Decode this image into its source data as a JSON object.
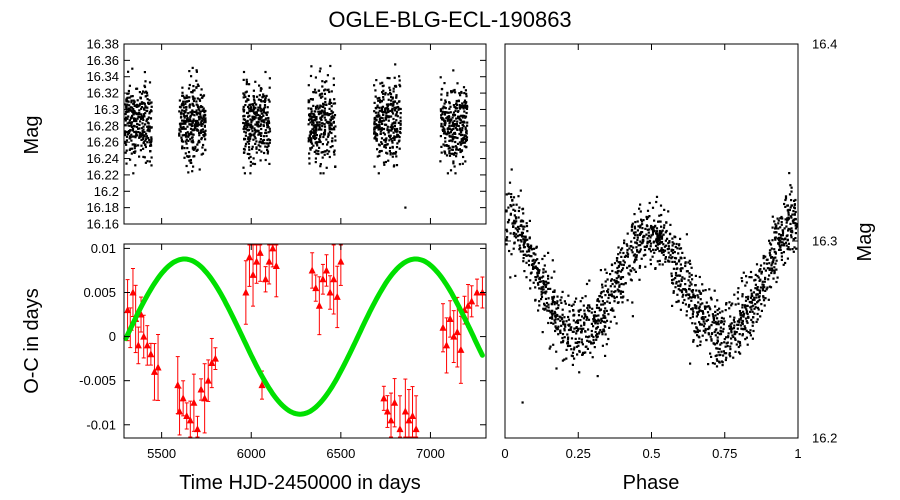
{
  "title": "OGLE-BLG-ECL-190863",
  "colors": {
    "data": "#000000",
    "oc_points": "#ff0000",
    "fit": "#00e000"
  },
  "chart_data": [
    {
      "id": "light_curve",
      "type": "scatter",
      "xlabel": "",
      "ylabel": "Mag",
      "xlim": [
        5290,
        7310
      ],
      "ylim": [
        16.38,
        16.16
      ],
      "yticks": [
        "16.16",
        "16.18",
        "16.2",
        "16.22",
        "16.24",
        "16.26",
        "16.28",
        "16.3",
        "16.32",
        "16.34",
        "16.36",
        "16.38"
      ],
      "season_centers": [
        5370,
        5670,
        6030,
        6395,
        6760,
        7130
      ],
      "season_halfwidth": 75,
      "mean_mag": 16.285,
      "scatter_mag": 0.024,
      "outlier": {
        "x": 6860,
        "y": 16.18
      }
    },
    {
      "id": "oc_diagram",
      "type": "scatter",
      "xlabel": "Time HJD-2450000 in days",
      "ylabel": "O-C in days",
      "xlim": [
        5290,
        7310
      ],
      "ylim": [
        -0.0115,
        0.0105
      ],
      "xticks": [
        "5500",
        "6000",
        "6500",
        "7000"
      ],
      "yticks": [
        "0.01",
        "0.005",
        "0",
        "-0.005",
        "-0.01"
      ],
      "fit": {
        "type": "sine",
        "amplitude": 0.0088,
        "offset": 0.0,
        "period_days": 1290,
        "phase_zero": 5950
      },
      "points": [
        {
          "x": 5310,
          "y": 0.003
        },
        {
          "x": 5325,
          "y": 0.001
        },
        {
          "x": 5340,
          "y": 0.005
        },
        {
          "x": 5355,
          "y": 0.002
        },
        {
          "x": 5370,
          "y": -0.001
        },
        {
          "x": 5385,
          "y": 0.0025
        },
        {
          "x": 5400,
          "y": 0.0
        },
        {
          "x": 5420,
          "y": -0.001
        },
        {
          "x": 5440,
          "y": -0.002
        },
        {
          "x": 5460,
          "y": -0.004
        },
        {
          "x": 5480,
          "y": -0.0035
        },
        {
          "x": 5590,
          "y": -0.0055
        },
        {
          "x": 5600,
          "y": -0.0085
        },
        {
          "x": 5620,
          "y": -0.007
        },
        {
          "x": 5640,
          "y": -0.009
        },
        {
          "x": 5660,
          "y": -0.0095
        },
        {
          "x": 5680,
          "y": -0.0075
        },
        {
          "x": 5700,
          "y": -0.0105
        },
        {
          "x": 5720,
          "y": -0.006
        },
        {
          "x": 5740,
          "y": -0.007
        },
        {
          "x": 5760,
          "y": -0.005
        },
        {
          "x": 5780,
          "y": -0.003
        },
        {
          "x": 5800,
          "y": -0.0025
        },
        {
          "x": 5970,
          "y": 0.005
        },
        {
          "x": 5990,
          "y": 0.009
        },
        {
          "x": 6010,
          "y": 0.007
        },
        {
          "x": 6030,
          "y": 0.0085
        },
        {
          "x": 6050,
          "y": 0.0095
        },
        {
          "x": 6060,
          "y": -0.0055
        },
        {
          "x": 6080,
          "y": 0.0065
        },
        {
          "x": 6100,
          "y": 0.0085
        },
        {
          "x": 6120,
          "y": 0.01
        },
        {
          "x": 6140,
          "y": 0.008
        },
        {
          "x": 6340,
          "y": 0.0075
        },
        {
          "x": 6360,
          "y": 0.0055
        },
        {
          "x": 6380,
          "y": 0.0035
        },
        {
          "x": 6400,
          "y": 0.0065
        },
        {
          "x": 6420,
          "y": 0.0075
        },
        {
          "x": 6440,
          "y": 0.005
        },
        {
          "x": 6460,
          "y": 0.0065
        },
        {
          "x": 6480,
          "y": 0.0045
        },
        {
          "x": 6500,
          "y": 0.0085
        },
        {
          "x": 6740,
          "y": -0.007
        },
        {
          "x": 6760,
          "y": -0.0085
        },
        {
          "x": 6780,
          "y": -0.0095
        },
        {
          "x": 6800,
          "y": -0.0075
        },
        {
          "x": 6830,
          "y": -0.0105
        },
        {
          "x": 6860,
          "y": -0.0085
        },
        {
          "x": 6880,
          "y": -0.0095
        },
        {
          "x": 6900,
          "y": -0.009
        },
        {
          "x": 6920,
          "y": -0.0105
        },
        {
          "x": 7070,
          "y": 0.001
        },
        {
          "x": 7090,
          "y": -0.001
        },
        {
          "x": 7110,
          "y": 0.002
        },
        {
          "x": 7130,
          "y": 0.0
        },
        {
          "x": 7150,
          "y": 0.0005
        },
        {
          "x": 7170,
          "y": -0.0015
        },
        {
          "x": 7190,
          "y": 0.003
        },
        {
          "x": 7210,
          "y": 0.0035
        },
        {
          "x": 7230,
          "y": 0.004
        },
        {
          "x": 7260,
          "y": 0.005
        },
        {
          "x": 7290,
          "y": 0.005
        }
      ]
    },
    {
      "id": "phased_curve",
      "type": "scatter",
      "xlabel": "Phase",
      "ylabel": "Mag",
      "xlim": [
        0,
        1
      ],
      "ylim": [
        16.4,
        16.2
      ],
      "xticks": [
        "0",
        "0.25",
        "0.5",
        "0.75",
        "1"
      ],
      "yticks": [
        "16.2",
        "16.3",
        "16.4"
      ],
      "max_mag": 16.246,
      "primary_depth": 0.065,
      "secondary_depth": 0.059,
      "scatter_mag": 0.0085,
      "outlier": {
        "x": 0.06,
        "y": 16.218
      }
    }
  ]
}
